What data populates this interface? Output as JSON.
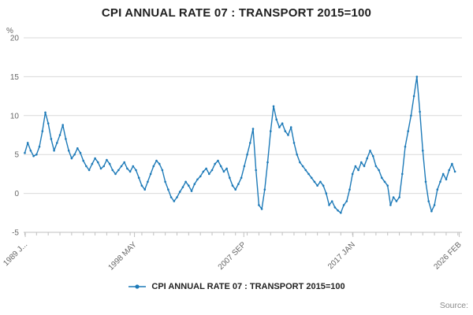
{
  "title": "CPI ANNUAL RATE 07 : TRANSPORT 2015=100",
  "legend": {
    "label": "CPI ANNUAL RATE 07 : TRANSPORT 2015=100"
  },
  "source": "Source:",
  "colors": {
    "accent": "#1d7ab8",
    "grid": "#d9d9d9",
    "axis": "#c0c0c0",
    "text_muted": "#666666",
    "title": "#202020"
  },
  "chart_data": {
    "type": "line",
    "title": "CPI ANNUAL RATE 07 : TRANSPORT 2015=100",
    "xlabel": "",
    "ylabel": "%",
    "ylim": [
      -5,
      20
    ],
    "xlim": [
      1988.9,
      2026.35
    ],
    "yticks": [
      -5,
      0,
      5,
      10,
      15,
      20
    ],
    "xticks": [
      {
        "x": 1989.04,
        "label": "1989 J..."
      },
      {
        "x": 1998.37,
        "label": "1998 MAY"
      },
      {
        "x": 2007.71,
        "label": "2007 SEP"
      },
      {
        "x": 2017.04,
        "label": "2017 JAN"
      },
      {
        "x": 2026.12,
        "label": "2026 FEB"
      }
    ],
    "grid": "horizontal",
    "legend_position": "bottom",
    "series": [
      {
        "name": "CPI ANNUAL RATE 07 : TRANSPORT 2015=100",
        "x_start": 1989.0,
        "x_step_years": 0.25,
        "values": [
          5.2,
          6.5,
          5.5,
          4.8,
          5.0,
          6.0,
          8.0,
          10.4,
          9.0,
          7.0,
          5.5,
          6.5,
          7.5,
          8.8,
          7.0,
          5.5,
          4.5,
          5.0,
          5.8,
          5.2,
          4.2,
          3.5,
          3.0,
          3.8,
          4.5,
          4.0,
          3.2,
          3.5,
          4.3,
          3.8,
          3.0,
          2.5,
          3.0,
          3.5,
          4.0,
          3.2,
          2.8,
          3.5,
          3.0,
          2.0,
          1.0,
          0.5,
          1.5,
          2.5,
          3.5,
          4.2,
          3.8,
          3.0,
          1.5,
          0.5,
          -0.5,
          -1.0,
          -0.5,
          0.2,
          0.8,
          1.5,
          1.0,
          0.3,
          1.2,
          1.8,
          2.2,
          2.8,
          3.2,
          2.5,
          3.0,
          3.8,
          4.2,
          3.5,
          2.8,
          3.2,
          2.0,
          1.0,
          0.5,
          1.2,
          2.0,
          3.5,
          5.0,
          6.5,
          8.3,
          3.0,
          -1.5,
          -2.0,
          0.5,
          4.0,
          8.0,
          11.2,
          9.5,
          8.5,
          9.0,
          8.0,
          7.5,
          8.5,
          6.5,
          5.0,
          4.0,
          3.5,
          3.0,
          2.5,
          2.0,
          1.5,
          1.0,
          1.5,
          1.0,
          0.0,
          -1.5,
          -1.0,
          -1.8,
          -2.2,
          -2.5,
          -1.5,
          -1.0,
          0.5,
          2.5,
          3.5,
          3.0,
          4.0,
          3.5,
          4.5,
          5.5,
          4.8,
          3.5,
          3.0,
          2.0,
          1.5,
          1.0,
          -1.5,
          -0.5,
          -1.0,
          -0.5,
          2.5,
          6.0,
          8.0,
          10.0,
          12.5,
          15.0,
          10.5,
          5.5,
          1.5,
          -1.0,
          -2.3,
          -1.5,
          0.5,
          1.5,
          2.5,
          1.8,
          3.0,
          3.8,
          2.8
        ]
      }
    ]
  }
}
